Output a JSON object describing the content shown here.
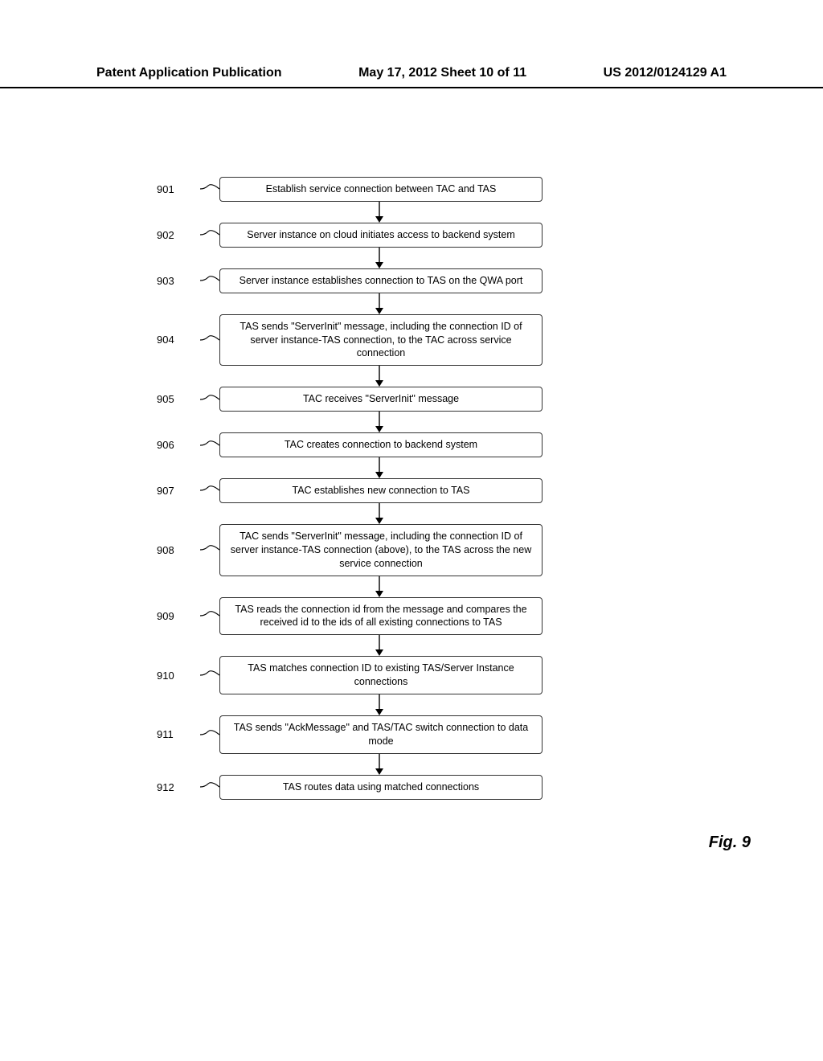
{
  "header": {
    "left": "Patent Application Publication",
    "center": "May 17, 2012  Sheet 10 of 11",
    "right": "US 2012/0124129 A1"
  },
  "figure_label": "Fig. 9",
  "flowchart": {
    "type": "flowchart",
    "box_border_color": "#333333",
    "box_border_radius": 4,
    "box_background": "#ffffff",
    "arrow_color": "#000000",
    "arrow_length": 26,
    "font_size": 12.5,
    "label_font_size": 13,
    "steps": [
      {
        "id": "901",
        "text": "Establish service connection between TAC and TAS"
      },
      {
        "id": "902",
        "text": "Server instance on cloud initiates access to backend system"
      },
      {
        "id": "903",
        "text": "Server instance establishes connection to TAS on the QWA port"
      },
      {
        "id": "904",
        "text": "TAS sends \"ServerInit\" message, including the connection ID of server instance-TAS connection, to the TAC across service connection"
      },
      {
        "id": "905",
        "text": "TAC receives \"ServerInit\" message"
      },
      {
        "id": "906",
        "text": "TAC creates connection to backend system"
      },
      {
        "id": "907",
        "text": "TAC establishes new connection to TAS"
      },
      {
        "id": "908",
        "text": "TAC sends \"ServerInit\" message, including the connection ID of server instance-TAS connection (above), to the TAS across the new service connection"
      },
      {
        "id": "909",
        "text": "TAS reads the connection id from the message and compares the received id to the ids of all existing connections to TAS"
      },
      {
        "id": "910",
        "text": "TAS matches connection ID to existing TAS/Server Instance connections"
      },
      {
        "id": "911",
        "text": "TAS sends \"AckMessage\" and TAS/TAC switch connection to data mode"
      },
      {
        "id": "912",
        "text": "TAS routes data using matched connections"
      }
    ]
  }
}
